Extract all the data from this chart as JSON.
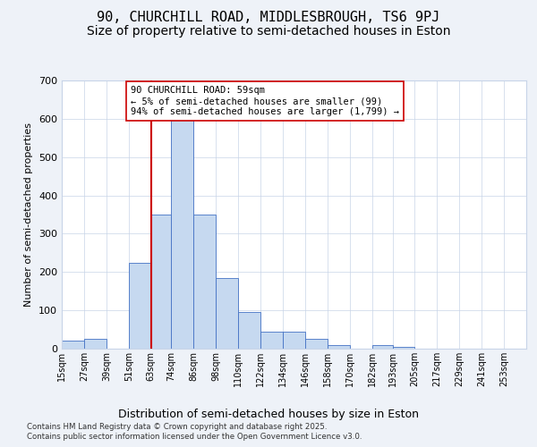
{
  "title1": "90, CHURCHILL ROAD, MIDDLESBROUGH, TS6 9PJ",
  "title2": "Size of property relative to semi-detached houses in Eston",
  "xlabel": "Distribution of semi-detached houses by size in Eston",
  "ylabel": "Number of semi-detached properties",
  "annotation_line1": "90 CHURCHILL ROAD: 59sqm",
  "annotation_line2": "← 5% of semi-detached houses are smaller (99)",
  "annotation_line3": "94% of semi-detached houses are larger (1,799) →",
  "footer1": "Contains HM Land Registry data © Crown copyright and database right 2025.",
  "footer2": "Contains public sector information licensed under the Open Government Licence v3.0.",
  "bin_labels": [
    "15sqm",
    "27sqm",
    "39sqm",
    "51sqm",
    "63sqm",
    "74sqm",
    "86sqm",
    "98sqm",
    "110sqm",
    "122sqm",
    "134sqm",
    "146sqm",
    "158sqm",
    "170sqm",
    "182sqm",
    "193sqm",
    "205sqm",
    "217sqm",
    "229sqm",
    "241sqm",
    "253sqm"
  ],
  "bin_edges": [
    15,
    27,
    39,
    51,
    63,
    74,
    86,
    98,
    110,
    122,
    134,
    146,
    158,
    170,
    182,
    193,
    205,
    217,
    229,
    241,
    253,
    265
  ],
  "bar_heights": [
    20,
    25,
    0,
    225,
    350,
    650,
    350,
    185,
    95,
    45,
    45,
    25,
    10,
    0,
    10,
    5,
    0,
    0,
    0,
    0,
    0
  ],
  "bar_color": "#c6d9f0",
  "bar_edge_color": "#4472c4",
  "red_line_x": 63,
  "ylim": [
    0,
    700
  ],
  "yticks": [
    0,
    100,
    200,
    300,
    400,
    500,
    600,
    700
  ],
  "background_color": "#eef2f8",
  "plot_background": "#ffffff",
  "grid_color": "#c8d4e8",
  "title_fontsize": 11,
  "subtitle_fontsize": 10,
  "annotation_box_edge": "#cc0000",
  "red_line_color": "#cc0000"
}
